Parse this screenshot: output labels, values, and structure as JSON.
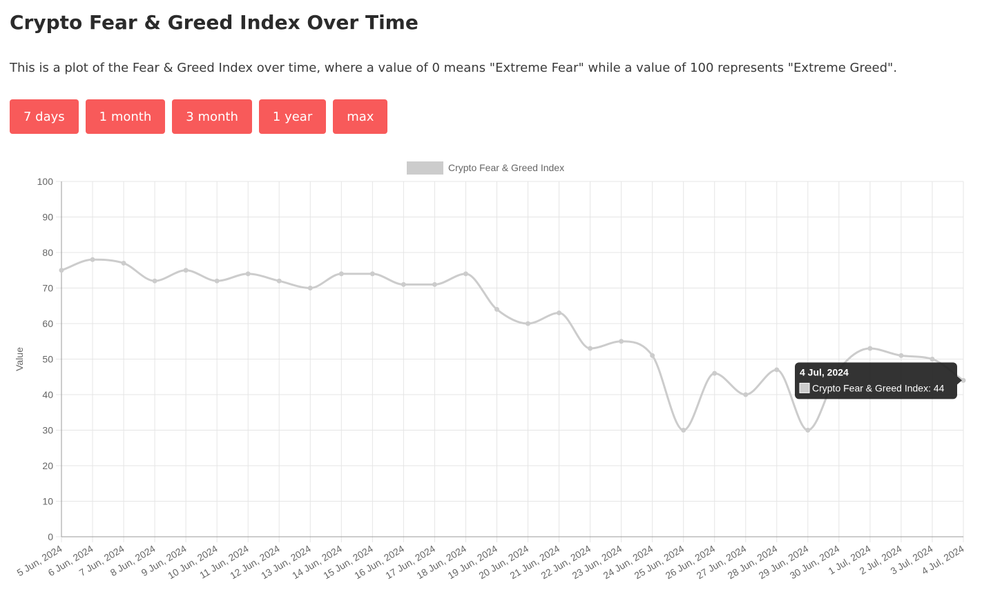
{
  "page": {
    "title": "Crypto Fear & Greed Index Over Time",
    "description": "This is a plot of the Fear & Greed Index over time, where a value of 0 means \"Extreme Fear\" while a value of 100 represents \"Extreme Greed\"."
  },
  "range_buttons": [
    {
      "label": "7 days"
    },
    {
      "label": "1 month"
    },
    {
      "label": "3 month"
    },
    {
      "label": "1 year"
    },
    {
      "label": "max"
    }
  ],
  "colors": {
    "button": "#f85a5a",
    "series": "#cccccc",
    "grid": "#e5e5e5",
    "axis": "#999999",
    "tooltip_bg": "#222222"
  },
  "chart_data": {
    "type": "line",
    "ylabel": "Value",
    "ylim": [
      0,
      100
    ],
    "yticks": [
      0,
      10,
      20,
      30,
      40,
      50,
      60,
      70,
      80,
      90,
      100
    ],
    "grid": true,
    "legend": "top-center",
    "categories": [
      "5 Jun, 2024",
      "6 Jun, 2024",
      "7 Jun, 2024",
      "8 Jun, 2024",
      "9 Jun, 2024",
      "10 Jun, 2024",
      "11 Jun, 2024",
      "12 Jun, 2024",
      "13 Jun, 2024",
      "14 Jun, 2024",
      "15 Jun, 2024",
      "16 Jun, 2024",
      "17 Jun, 2024",
      "18 Jun, 2024",
      "19 Jun, 2024",
      "20 Jun, 2024",
      "21 Jun, 2024",
      "22 Jun, 2024",
      "23 Jun, 2024",
      "24 Jun, 2024",
      "25 Jun, 2024",
      "26 Jun, 2024",
      "27 Jun, 2024",
      "28 Jun, 2024",
      "29 Jun, 2024",
      "30 Jun, 2024",
      "1 Jul, 2024",
      "2 Jul, 2024",
      "3 Jul, 2024",
      "4 Jul, 2024"
    ],
    "series": [
      {
        "name": "Crypto Fear & Greed Index",
        "values": [
          75,
          78,
          77,
          72,
          75,
          72,
          74,
          72,
          70,
          74,
          74,
          71,
          71,
          74,
          64,
          60,
          63,
          53,
          55,
          51,
          30,
          46,
          40,
          47,
          30,
          47,
          53,
          51,
          50,
          44
        ]
      }
    ],
    "tooltip": {
      "title": "4 Jul, 2024",
      "label": "Crypto Fear & Greed Index: 44"
    }
  }
}
